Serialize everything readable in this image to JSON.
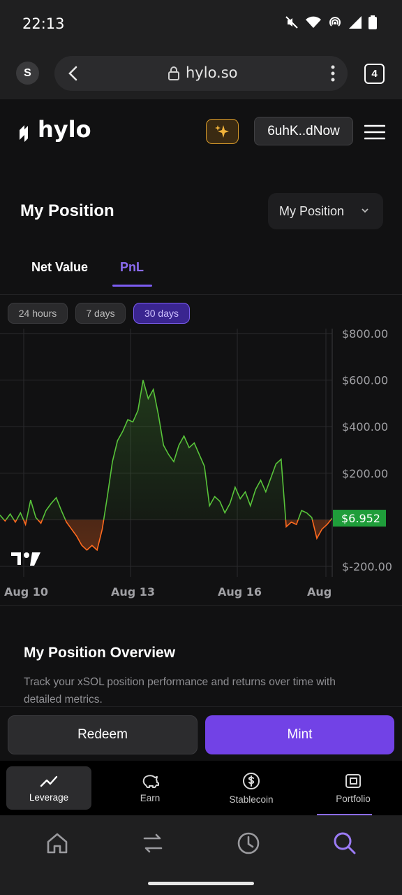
{
  "status_bar": {
    "time": "22:13"
  },
  "browser": {
    "profile_initial": "S",
    "url": "hylo.so",
    "tab_count": "4"
  },
  "header": {
    "logo_text": "hylo",
    "wallet": "6uhK..dNow"
  },
  "position": {
    "title": "My Position",
    "selector": "My Position"
  },
  "view_tabs": [
    {
      "label": "Net Value"
    },
    {
      "label": "PnL"
    }
  ],
  "periods": [
    {
      "label": "24 hours"
    },
    {
      "label": "7 days"
    },
    {
      "label": "30 days"
    }
  ],
  "chart_data": {
    "type": "line",
    "x_ticks": [
      "Aug 10",
      "Aug 13",
      "Aug 16",
      "Aug"
    ],
    "y_ticks": [
      "$800.00",
      "$600.00",
      "$400.00",
      "$200.00",
      "$-200.00"
    ],
    "ylim": [
      -200,
      800
    ],
    "last_value_label": "$6.952",
    "x": [
      0,
      1,
      2,
      3,
      4,
      5,
      6,
      7,
      8,
      9,
      10,
      11,
      12,
      13,
      14,
      15,
      16,
      17,
      18,
      19,
      20,
      21,
      22,
      23,
      24,
      25,
      26,
      27,
      28,
      29,
      30,
      31,
      32,
      33,
      34,
      35,
      36,
      37,
      38,
      39,
      40,
      41,
      42,
      43,
      44,
      45,
      46,
      47,
      48,
      49,
      50,
      51,
      52,
      53,
      54,
      55,
      56,
      57,
      58,
      59,
      60,
      61,
      62,
      63,
      64,
      65
    ],
    "values": [
      20,
      -5,
      25,
      -10,
      30,
      -20,
      85,
      10,
      -15,
      40,
      70,
      95,
      40,
      -10,
      -40,
      -70,
      -110,
      -130,
      -110,
      -130,
      -40,
      100,
      250,
      340,
      380,
      430,
      420,
      470,
      600,
      520,
      560,
      450,
      320,
      280,
      250,
      320,
      360,
      310,
      330,
      280,
      230,
      60,
      100,
      80,
      30,
      70,
      140,
      90,
      120,
      60,
      130,
      170,
      120,
      180,
      240,
      260,
      -30,
      -10,
      -20,
      40,
      30,
      10,
      -80,
      -40,
      -20,
      7
    ]
  },
  "overview": {
    "title": "My Position Overview",
    "description": "Track your xSOL position performance and returns over time with detailed metrics."
  },
  "actions": {
    "redeem": "Redeem",
    "mint": "Mint"
  },
  "app_nav": [
    {
      "label": "Leverage"
    },
    {
      "label": "Earn"
    },
    {
      "label": "Stablecoin"
    },
    {
      "label": "Portfolio"
    }
  ],
  "colors": {
    "accent": "#7242e6",
    "positive": "#58c43a",
    "negative": "#ff6a1f",
    "last_value_bg": "#1f9d3a"
  }
}
